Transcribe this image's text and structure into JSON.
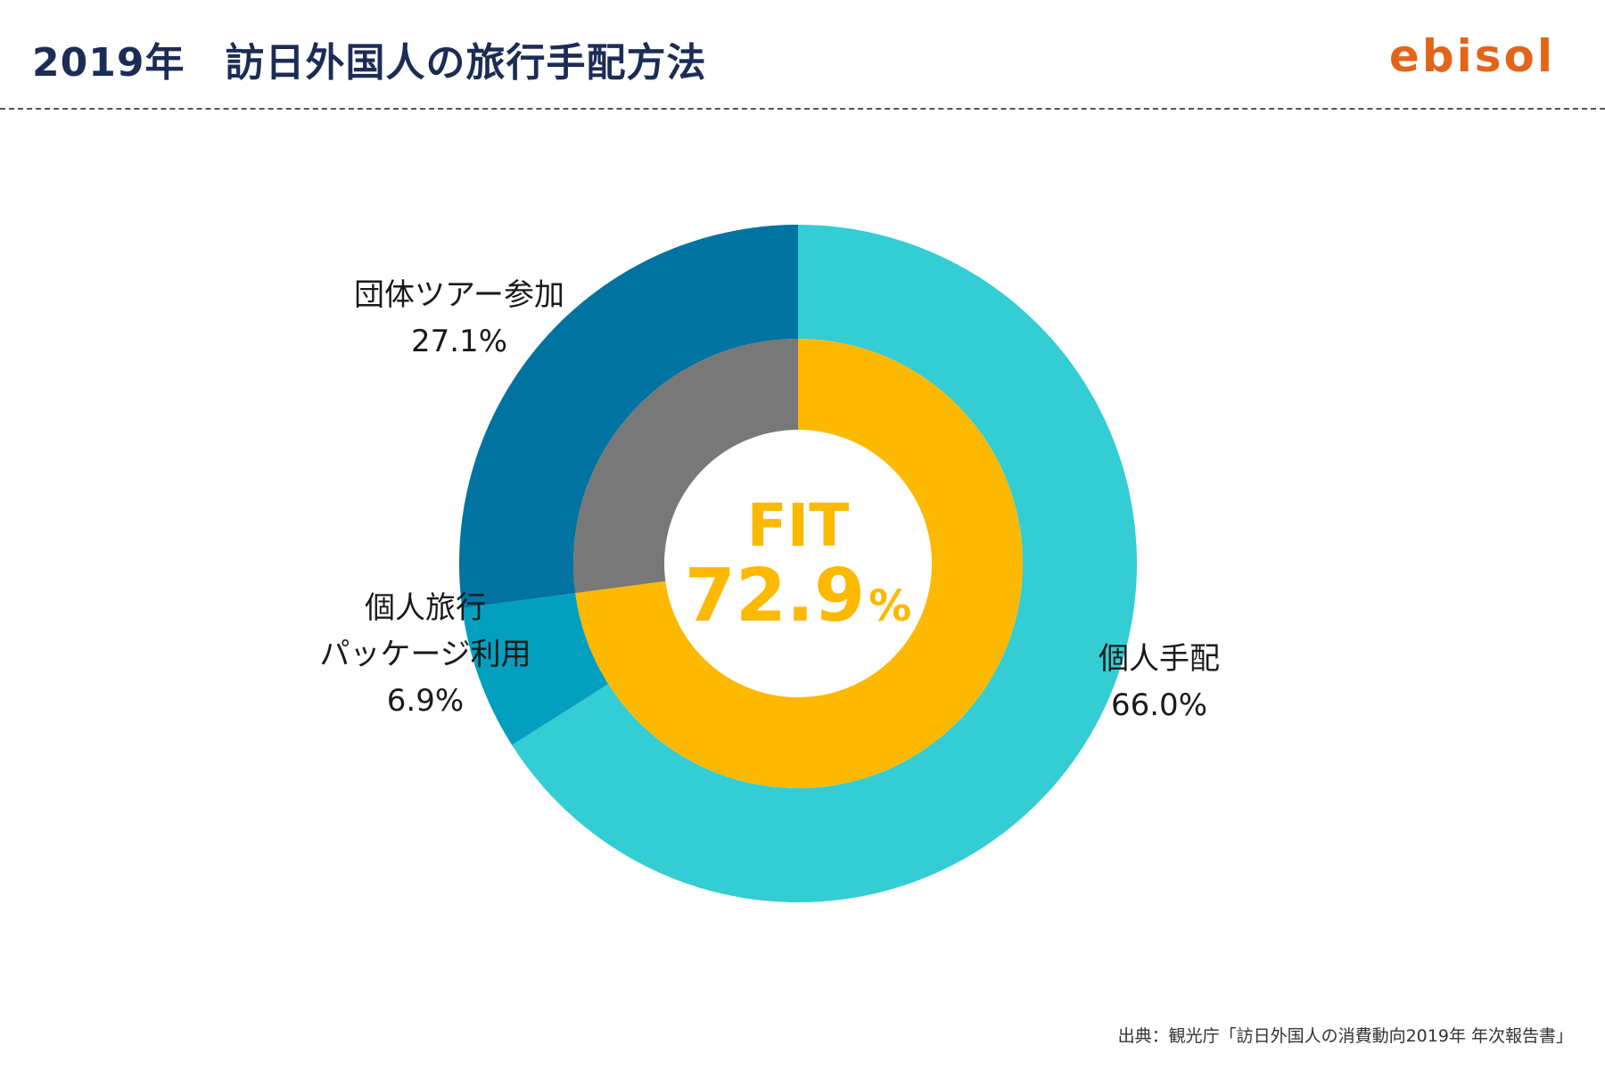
{
  "header": {
    "title": "2019年　訪日外国人の旅行手配方法",
    "logo": "ebisol"
  },
  "chart_data": [
    {
      "type": "pie",
      "ring": "outer",
      "categories": [
        "個人手配",
        "個人旅行パッケージ利用",
        "団体ツアー参加"
      ],
      "values": [
        66.0,
        6.9,
        27.1
      ],
      "value_labels": [
        "66.0%",
        "6.9%",
        "27.1%"
      ],
      "label_lines": [
        [
          "個人手配",
          "66.0%"
        ],
        [
          "個人旅行",
          "パッケージ利用",
          "6.9%"
        ],
        [
          "団体ツアー参加",
          "27.1%"
        ]
      ],
      "colors": [
        "#33cdd3",
        "#039fbf",
        "#0173a0"
      ]
    },
    {
      "type": "pie",
      "ring": "inner",
      "categories": [
        "FIT",
        "団体ツアー参加"
      ],
      "values": [
        72.9,
        27.1
      ],
      "colors": [
        "#fcb900",
        "#787878"
      ],
      "center_label": "FIT",
      "center_value": "72.9",
      "center_unit": "%"
    }
  ],
  "footer": {
    "source": "出典：観光庁「訪日外国人の消費動向2019年 年次報告書」"
  }
}
